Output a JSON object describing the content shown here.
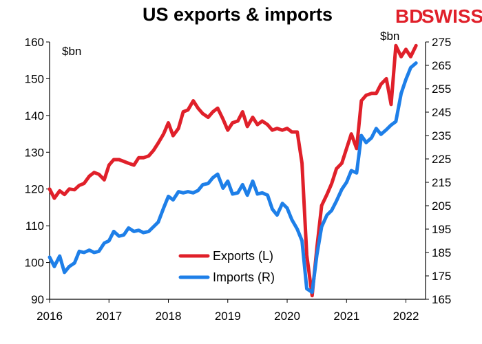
{
  "branding": {
    "logo_left": "BD",
    "logo_right": "SWISS",
    "color": "#e0202a"
  },
  "chart_data": {
    "type": "line",
    "title": "US exports & imports",
    "left_unit": "$bn",
    "right_unit": "$bn",
    "x_ticks": [
      "2016",
      "2017",
      "2018",
      "2019",
      "2020",
      "2021",
      "2022"
    ],
    "xlim": [
      2016.0,
      2022.33
    ],
    "y_left": {
      "ticks": [
        90,
        100,
        110,
        120,
        130,
        140,
        150,
        160
      ],
      "ylim": [
        90,
        160
      ]
    },
    "y_right": {
      "ticks": [
        165,
        175,
        185,
        195,
        205,
        215,
        225,
        235,
        245,
        255,
        265,
        275
      ],
      "ylim": [
        165,
        275
      ]
    },
    "legend_placement": "bottom-center",
    "grid": false,
    "series": [
      {
        "name": "Exports (L)",
        "axis": "left",
        "color": "#e0202a",
        "points": [
          [
            2016.0,
            120.0
          ],
          [
            2016.08,
            117.5
          ],
          [
            2016.17,
            119.5
          ],
          [
            2016.25,
            118.5
          ],
          [
            2016.33,
            120.0
          ],
          [
            2016.42,
            119.8
          ],
          [
            2016.5,
            121.0
          ],
          [
            2016.58,
            121.5
          ],
          [
            2016.67,
            123.5
          ],
          [
            2016.75,
            124.5
          ],
          [
            2016.83,
            124.0
          ],
          [
            2016.92,
            122.5
          ],
          [
            2017.0,
            126.5
          ],
          [
            2017.08,
            128.0
          ],
          [
            2017.17,
            128.0
          ],
          [
            2017.25,
            127.5
          ],
          [
            2017.33,
            127.0
          ],
          [
            2017.42,
            126.5
          ],
          [
            2017.5,
            128.5
          ],
          [
            2017.58,
            128.5
          ],
          [
            2017.67,
            129.0
          ],
          [
            2017.75,
            130.5
          ],
          [
            2017.83,
            132.5
          ],
          [
            2017.92,
            135.0
          ],
          [
            2018.0,
            138.0
          ],
          [
            2018.08,
            134.5
          ],
          [
            2018.17,
            136.5
          ],
          [
            2018.25,
            141.0
          ],
          [
            2018.33,
            141.5
          ],
          [
            2018.42,
            144.0
          ],
          [
            2018.5,
            142.0
          ],
          [
            2018.58,
            140.5
          ],
          [
            2018.67,
            139.5
          ],
          [
            2018.75,
            141.0
          ],
          [
            2018.83,
            142.0
          ],
          [
            2018.92,
            139.0
          ],
          [
            2019.0,
            136.0
          ],
          [
            2019.08,
            138.0
          ],
          [
            2019.17,
            138.5
          ],
          [
            2019.25,
            141.0
          ],
          [
            2019.33,
            137.0
          ],
          [
            2019.42,
            139.5
          ],
          [
            2019.5,
            137.5
          ],
          [
            2019.58,
            138.5
          ],
          [
            2019.67,
            137.5
          ],
          [
            2019.75,
            136.0
          ],
          [
            2019.83,
            136.5
          ],
          [
            2019.92,
            136.0
          ],
          [
            2020.0,
            136.5
          ],
          [
            2020.08,
            135.5
          ],
          [
            2020.17,
            135.5
          ],
          [
            2020.25,
            127.0
          ],
          [
            2020.33,
            102.0
          ],
          [
            2020.42,
            91.0
          ],
          [
            2020.5,
            104.0
          ],
          [
            2020.58,
            115.5
          ],
          [
            2020.67,
            118.5
          ],
          [
            2020.75,
            121.5
          ],
          [
            2020.83,
            125.5
          ],
          [
            2020.92,
            127.0
          ],
          [
            2021.0,
            131.0
          ],
          [
            2021.08,
            135.0
          ],
          [
            2021.17,
            131.0
          ],
          [
            2021.25,
            144.0
          ],
          [
            2021.33,
            145.5
          ],
          [
            2021.42,
            146.0
          ],
          [
            2021.5,
            146.0
          ],
          [
            2021.58,
            148.5
          ],
          [
            2021.67,
            150.0
          ],
          [
            2021.75,
            143.0
          ],
          [
            2021.83,
            159.0
          ],
          [
            2021.92,
            156.0
          ],
          [
            2022.0,
            158.0
          ],
          [
            2022.08,
            156.0
          ],
          [
            2022.17,
            159.0
          ]
        ]
      },
      {
        "name": "Imports (R)",
        "axis": "right",
        "color": "#1e7fe8",
        "points": [
          [
            2016.0,
            183.0
          ],
          [
            2016.08,
            179.0
          ],
          [
            2016.17,
            183.5
          ],
          [
            2016.25,
            176.5
          ],
          [
            2016.33,
            179.0
          ],
          [
            2016.42,
            180.5
          ],
          [
            2016.5,
            185.5
          ],
          [
            2016.58,
            185.0
          ],
          [
            2016.67,
            186.0
          ],
          [
            2016.75,
            185.0
          ],
          [
            2016.83,
            185.5
          ],
          [
            2016.92,
            189.0
          ],
          [
            2017.0,
            190.0
          ],
          [
            2017.08,
            194.0
          ],
          [
            2017.17,
            192.0
          ],
          [
            2017.25,
            192.5
          ],
          [
            2017.33,
            195.5
          ],
          [
            2017.42,
            194.0
          ],
          [
            2017.5,
            194.5
          ],
          [
            2017.58,
            193.5
          ],
          [
            2017.67,
            194.0
          ],
          [
            2017.75,
            196.0
          ],
          [
            2017.83,
            198.0
          ],
          [
            2017.92,
            204.0
          ],
          [
            2018.0,
            209.0
          ],
          [
            2018.08,
            207.5
          ],
          [
            2018.17,
            211.0
          ],
          [
            2018.25,
            210.5
          ],
          [
            2018.33,
            211.0
          ],
          [
            2018.42,
            210.5
          ],
          [
            2018.5,
            211.5
          ],
          [
            2018.58,
            214.0
          ],
          [
            2018.67,
            214.5
          ],
          [
            2018.75,
            217.0
          ],
          [
            2018.83,
            218.5
          ],
          [
            2018.92,
            212.5
          ],
          [
            2019.0,
            215.5
          ],
          [
            2019.08,
            210.0
          ],
          [
            2019.17,
            210.5
          ],
          [
            2019.25,
            214.0
          ],
          [
            2019.33,
            209.5
          ],
          [
            2019.42,
            215.5
          ],
          [
            2019.5,
            210.0
          ],
          [
            2019.58,
            210.5
          ],
          [
            2019.67,
            209.5
          ],
          [
            2019.75,
            203.5
          ],
          [
            2019.83,
            201.0
          ],
          [
            2019.92,
            206.0
          ],
          [
            2020.0,
            204.0
          ],
          [
            2020.08,
            199.0
          ],
          [
            2020.17,
            195.0
          ],
          [
            2020.25,
            190.0
          ],
          [
            2020.33,
            169.5
          ],
          [
            2020.42,
            168.0
          ],
          [
            2020.5,
            184.0
          ],
          [
            2020.58,
            196.0
          ],
          [
            2020.67,
            201.0
          ],
          [
            2020.75,
            203.0
          ],
          [
            2020.83,
            207.0
          ],
          [
            2020.92,
            212.0
          ],
          [
            2021.0,
            215.0
          ],
          [
            2021.08,
            220.0
          ],
          [
            2021.17,
            219.0
          ],
          [
            2021.25,
            235.0
          ],
          [
            2021.33,
            232.0
          ],
          [
            2021.42,
            234.0
          ],
          [
            2021.5,
            238.0
          ],
          [
            2021.58,
            235.5
          ],
          [
            2021.67,
            237.5
          ],
          [
            2021.75,
            239.5
          ],
          [
            2021.83,
            241.0
          ],
          [
            2021.92,
            253.0
          ],
          [
            2022.0,
            259.0
          ],
          [
            2022.08,
            264.0
          ],
          [
            2022.17,
            266.0
          ]
        ]
      }
    ]
  }
}
